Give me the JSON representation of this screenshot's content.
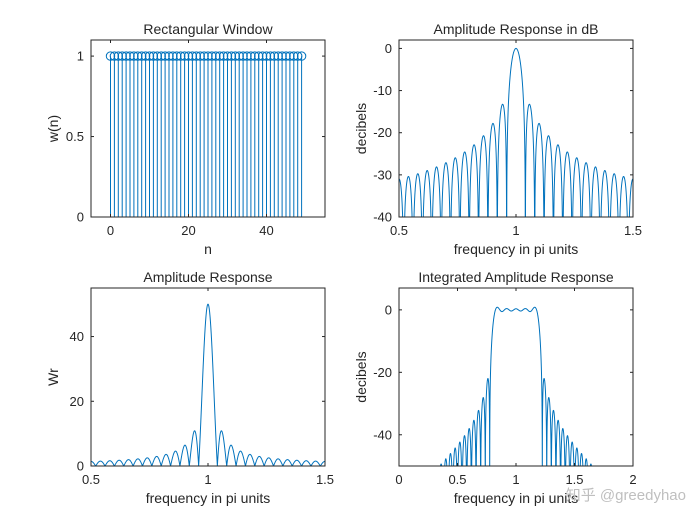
{
  "watermark": "知乎 @greedyhao",
  "colors": {
    "series": "#0072bd",
    "axes": "#262626",
    "background": "#ffffff"
  },
  "chart_data": [
    {
      "id": "p1",
      "type": "stem",
      "title": "Rectangular Window",
      "xlabel": "n",
      "ylabel": "w(n)",
      "xlim": [
        -5,
        55
      ],
      "ylim": [
        0,
        1.1
      ],
      "xticks": [
        0,
        20,
        40
      ],
      "yticks": [
        0,
        0.5,
        1
      ],
      "n_start": 0,
      "n_end": 49,
      "value": 1,
      "grid": false
    },
    {
      "id": "p2",
      "type": "line",
      "title": "Amplitude Response in dB",
      "xlabel": "frequency in pi units",
      "ylabel": "decibels",
      "xlim": [
        0.5,
        1.5
      ],
      "ylim": [
        -40,
        2
      ],
      "xticks": [
        0.5,
        1,
        1.5
      ],
      "yticks": [
        0,
        -10,
        -20,
        -30,
        -40
      ],
      "function": "20*log10(|W(w-pi)|/50)",
      "N": 50,
      "grid": false
    },
    {
      "id": "p3",
      "type": "line",
      "title": "Amplitude Response",
      "xlabel": "frequency in pi units",
      "ylabel": "Wr",
      "xlim": [
        0.5,
        1.5
      ],
      "ylim": [
        0,
        55
      ],
      "xticks": [
        0.5,
        1,
        1.5
      ],
      "yticks": [
        0,
        20,
        40
      ],
      "function": "|sin(25(w-pi))/sin((w-pi)/2)|",
      "N": 50,
      "grid": false
    },
    {
      "id": "p4",
      "type": "line",
      "title": "Integrated Amplitude Response",
      "xlabel": "frequency in pi units",
      "ylabel": "decibels",
      "xlim": [
        0,
        2
      ],
      "ylim": [
        -50,
        7
      ],
      "xticks": [
        0,
        0.5,
        1,
        1.5,
        2
      ],
      "yticks": [
        0,
        -20,
        -40
      ],
      "function": "20*log10(|cumulative integral of W|), ideal band 0.8-1.2",
      "band": [
        0.8,
        1.2
      ],
      "N": 50,
      "grid": false
    }
  ]
}
